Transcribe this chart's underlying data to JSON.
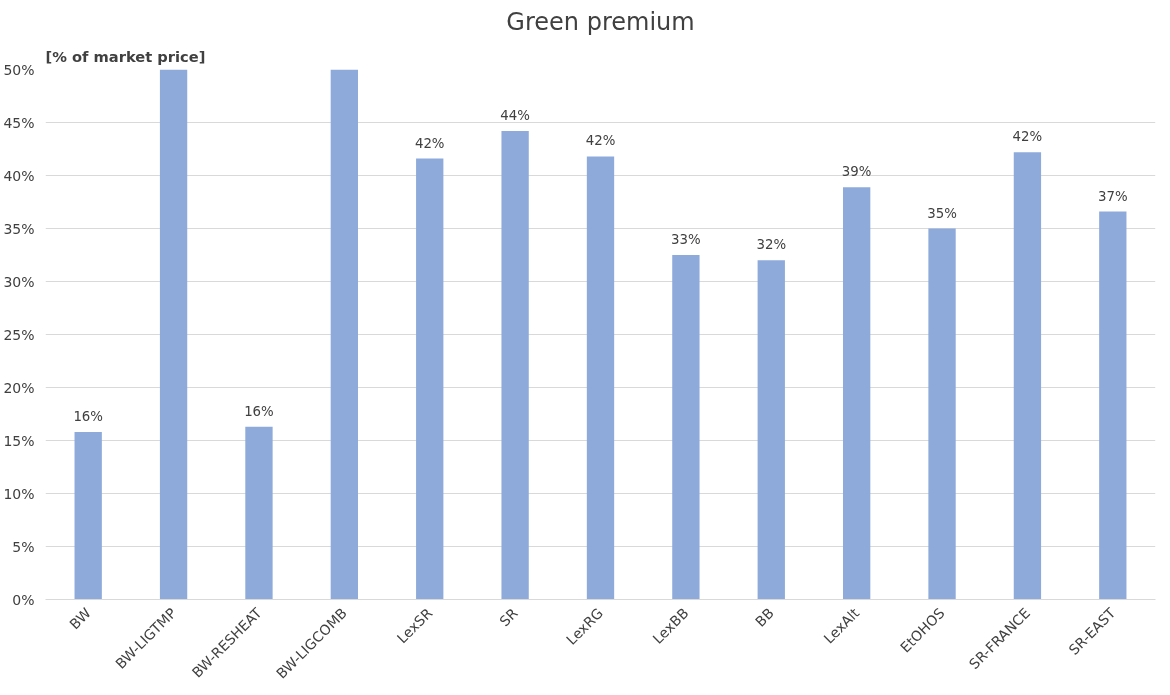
{
  "chart_data": {
    "type": "bar",
    "title": "Green premium",
    "ylabel": "[% of market price]",
    "categories": [
      "BW",
      "BW-LIGTMP",
      "BW-RESHEAT",
      "BW-LIGCOMB",
      "LexSR",
      "SR",
      "LexRG",
      "LexBB",
      "BB",
      "LexAlt",
      "EtOHOS",
      "SR-FRANCE",
      "SR-EAST"
    ],
    "values": [
      15.8,
      50,
      16.3,
      50,
      41.6,
      44.2,
      41.8,
      32.5,
      32.0,
      38.9,
      35.0,
      42.2,
      36.6
    ],
    "value_labels": [
      "16%",
      null,
      "16%",
      null,
      "42%",
      "44%",
      "42%",
      "33%",
      "32%",
      "39%",
      "35%",
      "42%",
      "37%"
    ],
    "color": "#8eaadb",
    "ylim": [
      0,
      50
    ],
    "yticks": [
      {
        "value": 0,
        "label": "0%"
      },
      {
        "value": 5,
        "label": "5%"
      },
      {
        "value": 10,
        "label": "10%"
      },
      {
        "value": 15,
        "label": "15%"
      },
      {
        "value": 20,
        "label": "20%"
      },
      {
        "value": 25,
        "label": "25%"
      },
      {
        "value": 30,
        "label": "30%"
      },
      {
        "value": 35,
        "label": "35%"
      },
      {
        "value": 40,
        "label": "40%"
      },
      {
        "value": 45,
        "label": "45%"
      },
      {
        "value": 50,
        "label": "50%"
      }
    ],
    "grid": "y"
  }
}
